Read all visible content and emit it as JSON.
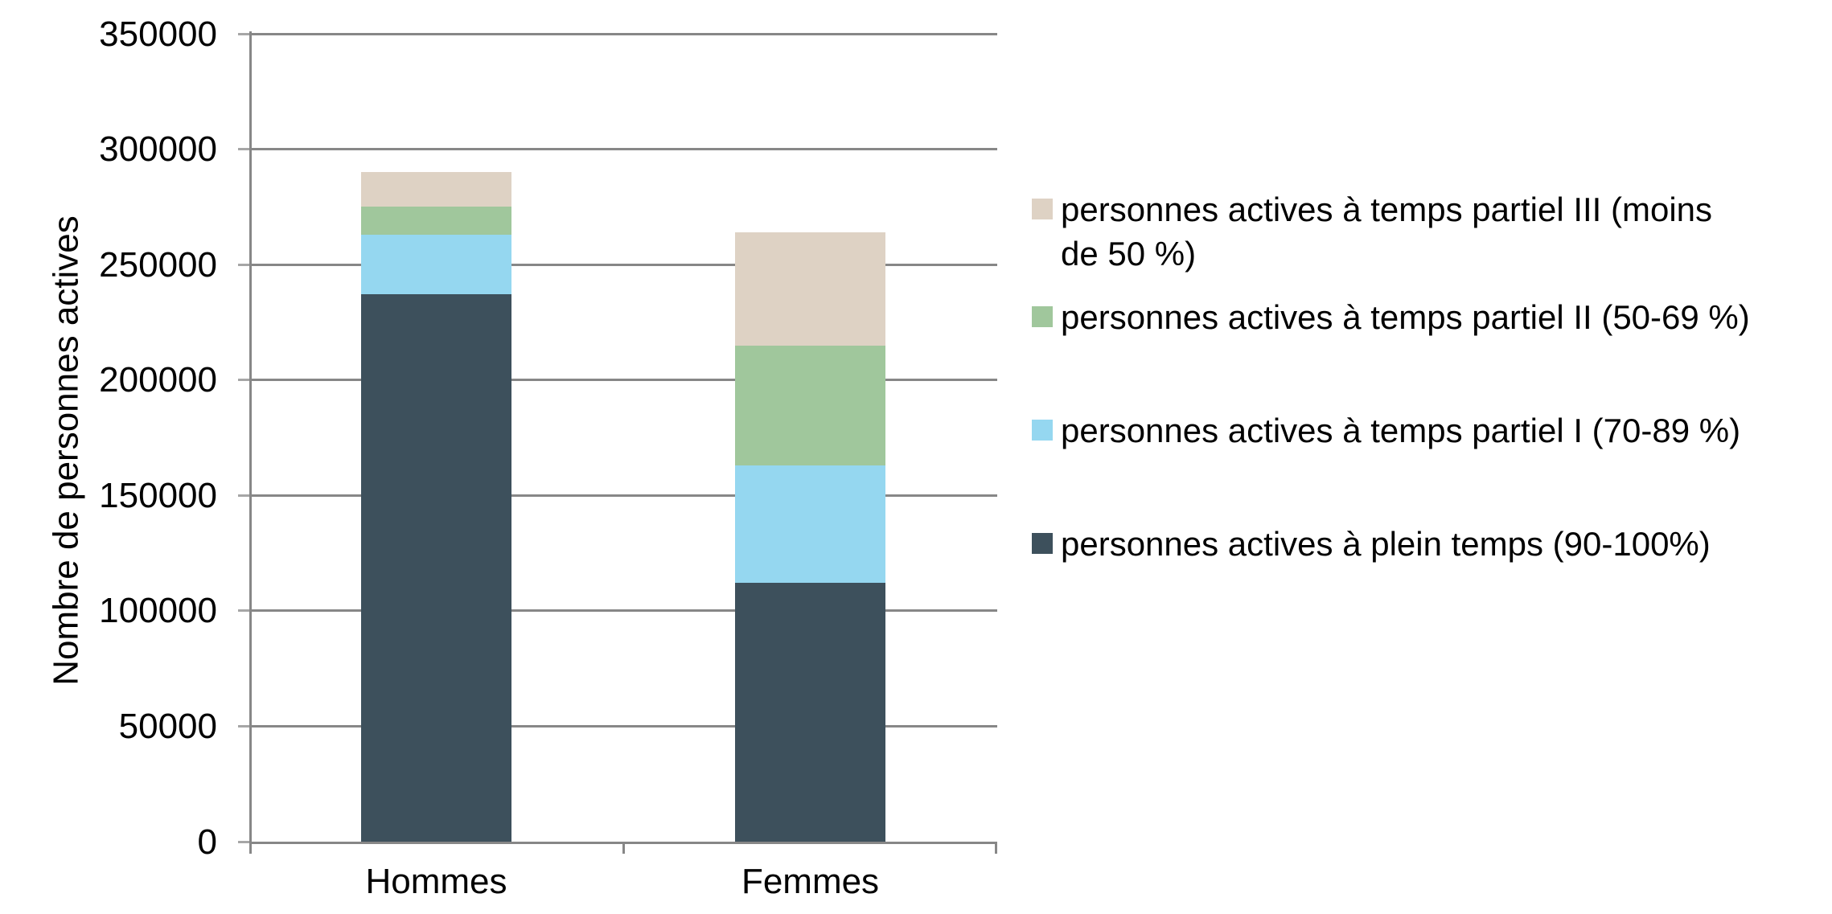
{
  "chart_data": {
    "type": "bar",
    "subtype": "stacked-vertical",
    "title": "",
    "xlabel": "",
    "ylabel": "Nombre de personnes actives",
    "ylim": [
      0,
      350000
    ],
    "ytick_step": 50000,
    "yticks": [
      0,
      50000,
      100000,
      150000,
      200000,
      250000,
      300000,
      350000
    ],
    "grid": "horizontal",
    "legend_position": "right",
    "legend_order": "top-is-last-series",
    "categories": [
      "Hommes",
      "Femmes"
    ],
    "series": [
      {
        "name": "personnes actives à plein temps (90-100%)",
        "legend_label": "personnes actives à plein temps (90-100%)",
        "color": "#3D505C",
        "values": [
          237000,
          112000
        ]
      },
      {
        "name": "personnes actives à temps partiel I (70-89 %)",
        "legend_label": "personnes actives à temps partiel I (70-89 %)",
        "color": "#95D7F0",
        "values": [
          26000,
          51000
        ]
      },
      {
        "name": "personnes actives à temps partiel II (50-69 %)",
        "legend_label": "personnes actives à temps partiel II (50-69 %)",
        "color": "#A0C79C",
        "values": [
          12000,
          52000
        ]
      },
      {
        "name": "personnes actives à temps partiel III (moins de 50 %)",
        "legend_label": "personnes actives à temps partiel III (moins\nde 50 %)",
        "color": "#DED2C4",
        "values": [
          15000,
          49000
        ]
      }
    ],
    "totals": {
      "Hommes": 290000,
      "Femmes": 264000
    }
  },
  "style": {
    "background": "#FFFFFF",
    "grid_color": "#878787",
    "axis_color": "#878787",
    "tick_color": "#A6A6A6",
    "text_color": "#000000"
  }
}
